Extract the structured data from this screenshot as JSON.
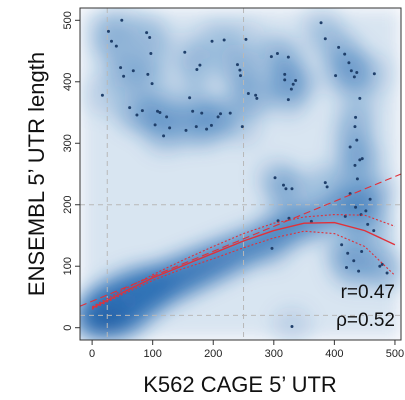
{
  "chart_data": {
    "type": "scatter",
    "xlabel": "K562 CAGE 5’ UTR",
    "ylabel": "ENSEMBL 5’ UTR length",
    "xlim": [
      -20,
      510
    ],
    "ylim": [
      -20,
      520
    ],
    "xticks": [
      0,
      100,
      200,
      300,
      400,
      500
    ],
    "yticks": [
      0,
      100,
      200,
      300,
      400,
      500
    ],
    "xtick_labels": [
      "0",
      "100",
      "200",
      "300",
      "400",
      "500"
    ],
    "ytick_labels": [
      "0",
      "100",
      "200",
      "300",
      "400",
      "500"
    ],
    "reference_lines": {
      "vertical": [
        25,
        250
      ],
      "horizontal": [
        20,
        200
      ],
      "style": "dashed grey"
    },
    "density_background": true,
    "points": [
      [
        17,
        378
      ],
      [
        27,
        482
      ],
      [
        32,
        466
      ],
      [
        40,
        458
      ],
      [
        49,
        500
      ],
      [
        47,
        423
      ],
      [
        52,
        409
      ],
      [
        68,
        418
      ],
      [
        62,
        358
      ],
      [
        74,
        346
      ],
      [
        83,
        353
      ],
      [
        90,
        480
      ],
      [
        95,
        472
      ],
      [
        97,
        446
      ],
      [
        92,
        412
      ],
      [
        99,
        397
      ],
      [
        108,
        352
      ],
      [
        112,
        350
      ],
      [
        104,
        330
      ],
      [
        118,
        312
      ],
      [
        128,
        325
      ],
      [
        123,
        343
      ],
      [
        153,
        448
      ],
      [
        166,
        352
      ],
      [
        173,
        420
      ],
      [
        178,
        427
      ],
      [
        161,
        374
      ],
      [
        155,
        321
      ],
      [
        172,
        327
      ],
      [
        181,
        349
      ],
      [
        189,
        323
      ],
      [
        197,
        329
      ],
      [
        208,
        343
      ],
      [
        212,
        348
      ],
      [
        198,
        466
      ],
      [
        218,
        468
      ],
      [
        228,
        349
      ],
      [
        240,
        428
      ],
      [
        244,
        419
      ],
      [
        245,
        410
      ],
      [
        248,
        327
      ],
      [
        254,
        469
      ],
      [
        258,
        381
      ],
      [
        270,
        378
      ],
      [
        272,
        373
      ],
      [
        296,
        441
      ],
      [
        306,
        446
      ],
      [
        318,
        403
      ],
      [
        324,
        440
      ],
      [
        318,
        412
      ],
      [
        329,
        388
      ],
      [
        324,
        371
      ],
      [
        332,
        396
      ],
      [
        336,
        402
      ],
      [
        302,
        244
      ],
      [
        316,
        232
      ],
      [
        320,
        226
      ],
      [
        330,
        226
      ],
      [
        325,
        178
      ],
      [
        297,
        129
      ],
      [
        307,
        174
      ],
      [
        362,
        173
      ],
      [
        378,
        496
      ],
      [
        385,
        470
      ],
      [
        388,
        229
      ],
      [
        385,
        236
      ],
      [
        402,
        410
      ],
      [
        407,
        456
      ],
      [
        417,
        445
      ],
      [
        424,
        431
      ],
      [
        428,
        418
      ],
      [
        433,
        408
      ],
      [
        437,
        415
      ],
      [
        442,
        373
      ],
      [
        435,
        342
      ],
      [
        434,
        327
      ],
      [
        437,
        305
      ],
      [
        426,
        294
      ],
      [
        442,
        273
      ],
      [
        446,
        275
      ],
      [
        434,
        264
      ],
      [
        438,
        242
      ],
      [
        426,
        218
      ],
      [
        435,
        196
      ],
      [
        444,
        184
      ],
      [
        452,
        190
      ],
      [
        455,
        168
      ],
      [
        459,
        209
      ],
      [
        465,
        158
      ],
      [
        475,
        100
      ],
      [
        479,
        103
      ],
      [
        487,
        89
      ],
      [
        466,
        413
      ],
      [
        412,
        135
      ],
      [
        418,
        181
      ],
      [
        422,
        121
      ],
      [
        432,
        109
      ],
      [
        420,
        98
      ],
      [
        445,
        124
      ],
      [
        440,
        92
      ],
      [
        330,
        2
      ]
    ],
    "fits": [
      {
        "kind": "linear regression",
        "style": "dashed red",
        "x": [
          -20,
          510
        ],
        "y": [
          35,
          250
        ]
      },
      {
        "kind": "quadratic fit",
        "style": "solid red",
        "x": [
          0,
          50,
          100,
          150,
          200,
          250,
          300,
          350,
          400,
          450,
          500
        ],
        "y": [
          32,
          57,
          81,
          101,
          121,
          141,
          158,
          170,
          171,
          158,
          135
        ]
      },
      {
        "kind": "confidence band upper",
        "style": "dotted red",
        "x": [
          0,
          50,
          100,
          150,
          200,
          250,
          300,
          350,
          400,
          450,
          500
        ],
        "y": [
          34,
          61,
          86,
          110,
          132,
          153,
          170,
          180,
          184,
          183,
          165
        ]
      },
      {
        "kind": "confidence band lower",
        "style": "dotted red",
        "x": [
          0,
          50,
          100,
          150,
          200,
          250,
          300,
          350,
          400,
          450,
          500
        ],
        "y": [
          30,
          54,
          77,
          96,
          112,
          130,
          146,
          157,
          153,
          132,
          85
        ]
      }
    ],
    "annotations": {
      "r": "r=0.47",
      "rho": "ρ=0.52"
    },
    "colors": {
      "density": "#2a6db3",
      "points": "#1f3f6a",
      "fit": "#e0313a",
      "ref": "#b8b8b8"
    }
  }
}
